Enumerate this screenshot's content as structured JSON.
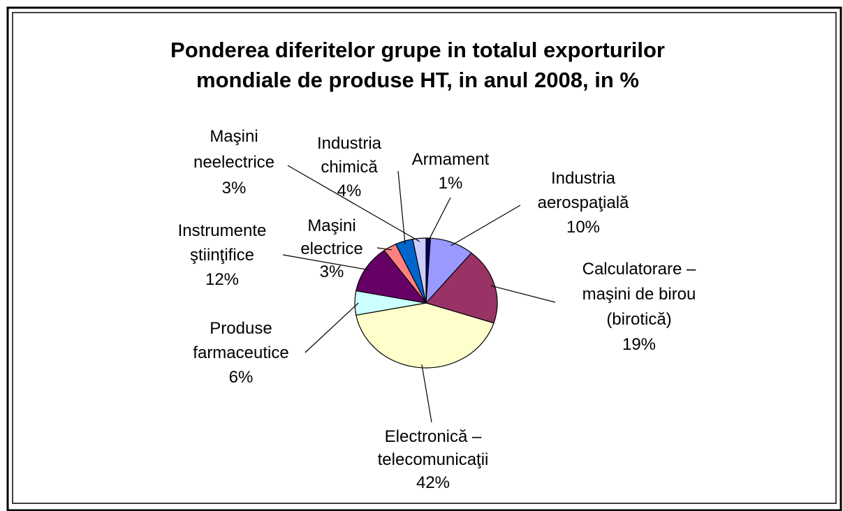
{
  "chart_data": {
    "type": "pie",
    "title": "Ponderea diferitelor grupe in totalul exporturilor\nmondiale de produse HT, in anul 2008, in %",
    "categories": [
      "Armament",
      "Industria\naerospaţială",
      "Calculatorare –\nmaşini de birou\n(birotică)",
      "Electronică –\ntelecomunicaţii",
      "Produse\nfarmaceutice",
      "Instrumente\nştiinţifice",
      "Maşini\nelectrice",
      "Industria\nchimică",
      "Maşini\nneelectrice"
    ],
    "values": [
      1,
      10,
      19,
      42,
      6,
      12,
      3,
      4,
      3
    ],
    "value_labels": [
      "1%",
      "10%",
      "19%",
      "42%",
      "6%",
      "12%",
      "3%",
      "4%",
      "3%"
    ],
    "colors": [
      "#000066",
      "#9999ff",
      "#993366",
      "#ffffcc",
      "#ccffff",
      "#660066",
      "#ff8080",
      "#0066cc",
      "#ccccff"
    ]
  }
}
